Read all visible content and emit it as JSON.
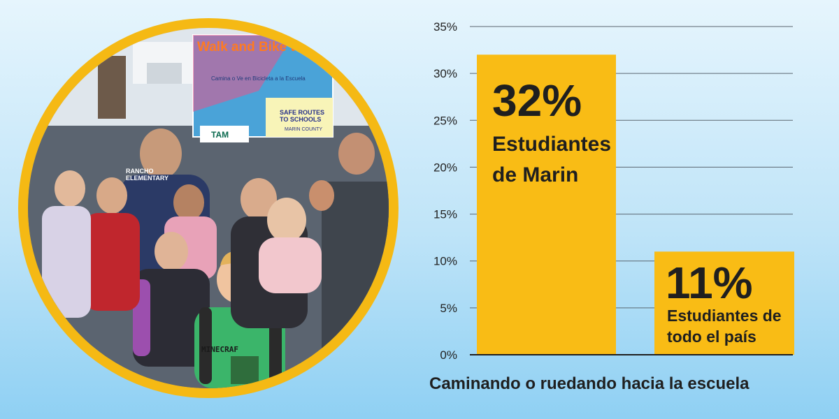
{
  "photo": {
    "sign_title": "Walk and Bike to School",
    "sign_subtitle": "Camina o Ve en Bicicleta a la Escuela",
    "sign_program": "SAFE ROUTES TO SCHOOLS",
    "sign_county": "MARIN COUNTY",
    "sign_agency": "TAM",
    "shirt_text": "RANCHO ELEMENTARY",
    "minecraft_text": "MINECRAF"
  },
  "chart_data": {
    "type": "bar",
    "xlabel": "Caminando o ruedando hacia la escuela",
    "ylim": [
      0,
      35
    ],
    "y_ticks": [
      {
        "value": 0,
        "label": "0%"
      },
      {
        "value": 5,
        "label": "5%"
      },
      {
        "value": 10,
        "label": "10%"
      },
      {
        "value": 15,
        "label": "15%"
      },
      {
        "value": 20,
        "label": "20%"
      },
      {
        "value": 25,
        "label": "25%"
      },
      {
        "value": 30,
        "label": "30%"
      },
      {
        "value": 35,
        "label": "35%"
      }
    ],
    "grid": true,
    "bars": [
      {
        "value": 32,
        "value_label": "32%",
        "category_lines": [
          "Estudiantes",
          "de Marin"
        ]
      },
      {
        "value": 11,
        "value_label": "11%",
        "category_lines": [
          "Estudiantes de",
          "todo el país"
        ]
      }
    ],
    "bar_color": "#f9bc15",
    "grid_color": "#5a6670"
  }
}
